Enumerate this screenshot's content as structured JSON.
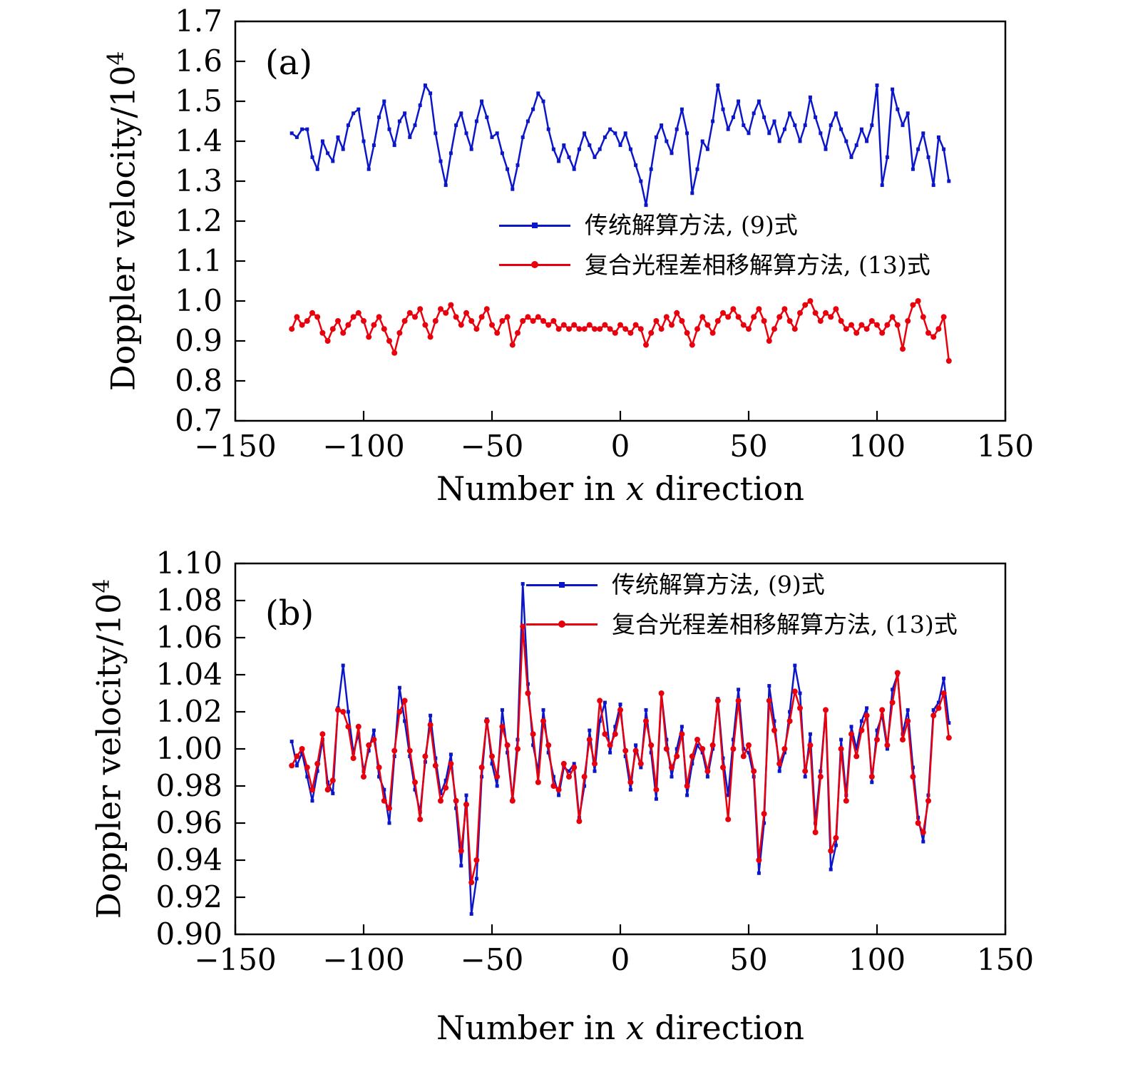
{
  "colors": {
    "series_blue": "#0b16c8",
    "series_red": "#e8000d",
    "axis": "#000000"
  },
  "chart_data": [
    {
      "type": "line",
      "panel_label": "(a)",
      "title": "",
      "ylabel_base": "Doppler velocity/10",
      "ylabel_sup": "4",
      "xlabel_pre": "Number in ",
      "xlabel_var": "x",
      "xlabel_post": " direction",
      "xlim": [
        -150,
        150
      ],
      "ylim": [
        0.7,
        1.7
      ],
      "grid": false,
      "legend_position": "center-right-inside",
      "xticks": {
        "values": [
          -150,
          -100,
          -50,
          0,
          50,
          100,
          150
        ],
        "labels": [
          "−150",
          "−100",
          "−50",
          "0",
          "50",
          "100",
          "150"
        ]
      },
      "yticks": {
        "values": [
          0.7,
          0.8,
          0.9,
          1.0,
          1.1,
          1.2,
          1.3,
          1.4,
          1.5,
          1.6,
          1.7
        ],
        "labels": [
          "0.7",
          "0.8",
          "0.9",
          "1.0",
          "1.1",
          "1.2",
          "1.3",
          "1.4",
          "1.5",
          "1.6",
          "1.7"
        ]
      },
      "x": [
        -128,
        -126,
        -124,
        -122,
        -120,
        -118,
        -116,
        -114,
        -112,
        -110,
        -108,
        -106,
        -104,
        -102,
        -100,
        -98,
        -96,
        -94,
        -92,
        -90,
        -88,
        -86,
        -84,
        -82,
        -80,
        -78,
        -76,
        -74,
        -72,
        -70,
        -68,
        -66,
        -64,
        -62,
        -60,
        -58,
        -56,
        -54,
        -52,
        -50,
        -48,
        -46,
        -44,
        -42,
        -40,
        -38,
        -36,
        -34,
        -32,
        -30,
        -28,
        -26,
        -24,
        -22,
        -20,
        -18,
        -16,
        -14,
        -12,
        -10,
        -8,
        -6,
        -4,
        -2,
        0,
        2,
        4,
        6,
        8,
        10,
        12,
        14,
        16,
        18,
        20,
        22,
        24,
        26,
        28,
        30,
        32,
        34,
        36,
        38,
        40,
        42,
        44,
        46,
        48,
        50,
        52,
        54,
        56,
        58,
        60,
        62,
        64,
        66,
        68,
        70,
        72,
        74,
        76,
        78,
        80,
        82,
        84,
        86,
        88,
        90,
        92,
        94,
        96,
        98,
        100,
        102,
        104,
        106,
        108,
        110,
        112,
        114,
        116,
        118,
        120,
        122,
        124,
        126,
        128
      ],
      "series": [
        {
          "name": "传统解算方法, (9)式",
          "color": "#0b16c8",
          "marker": "square",
          "values": [
            1.42,
            1.41,
            1.43,
            1.43,
            1.36,
            1.33,
            1.4,
            1.37,
            1.35,
            1.41,
            1.38,
            1.44,
            1.47,
            1.48,
            1.4,
            1.33,
            1.39,
            1.46,
            1.5,
            1.43,
            1.39,
            1.45,
            1.47,
            1.41,
            1.44,
            1.49,
            1.54,
            1.52,
            1.42,
            1.35,
            1.29,
            1.37,
            1.44,
            1.47,
            1.42,
            1.38,
            1.45,
            1.5,
            1.46,
            1.41,
            1.42,
            1.37,
            1.33,
            1.28,
            1.34,
            1.41,
            1.45,
            1.48,
            1.52,
            1.5,
            1.43,
            1.38,
            1.35,
            1.39,
            1.36,
            1.33,
            1.38,
            1.42,
            1.39,
            1.36,
            1.38,
            1.41,
            1.43,
            1.42,
            1.39,
            1.42,
            1.38,
            1.34,
            1.3,
            1.24,
            1.33,
            1.41,
            1.44,
            1.4,
            1.37,
            1.43,
            1.48,
            1.42,
            1.27,
            1.33,
            1.4,
            1.38,
            1.45,
            1.54,
            1.48,
            1.43,
            1.46,
            1.5,
            1.44,
            1.42,
            1.47,
            1.5,
            1.46,
            1.42,
            1.45,
            1.4,
            1.43,
            1.47,
            1.44,
            1.4,
            1.44,
            1.51,
            1.46,
            1.42,
            1.38,
            1.44,
            1.47,
            1.43,
            1.4,
            1.36,
            1.39,
            1.43,
            1.4,
            1.44,
            1.54,
            1.29,
            1.36,
            1.53,
            1.48,
            1.44,
            1.47,
            1.33,
            1.38,
            1.42,
            1.36,
            1.29,
            1.41,
            1.38,
            1.3
          ]
        },
        {
          "name": "复合光程差相移解算方法, (13)式",
          "color": "#e8000d",
          "marker": "circle",
          "values": [
            0.93,
            0.96,
            0.94,
            0.95,
            0.97,
            0.96,
            0.92,
            0.9,
            0.93,
            0.95,
            0.92,
            0.94,
            0.96,
            0.97,
            0.95,
            0.91,
            0.94,
            0.96,
            0.93,
            0.9,
            0.87,
            0.92,
            0.95,
            0.97,
            0.96,
            0.98,
            0.94,
            0.91,
            0.95,
            0.98,
            0.97,
            0.99,
            0.96,
            0.94,
            0.97,
            0.95,
            0.93,
            0.96,
            0.98,
            0.94,
            0.92,
            0.95,
            0.96,
            0.89,
            0.92,
            0.95,
            0.96,
            0.95,
            0.96,
            0.95,
            0.94,
            0.95,
            0.93,
            0.94,
            0.93,
            0.94,
            0.93,
            0.93,
            0.94,
            0.93,
            0.93,
            0.94,
            0.93,
            0.92,
            0.94,
            0.93,
            0.92,
            0.94,
            0.93,
            0.89,
            0.92,
            0.95,
            0.93,
            0.96,
            0.94,
            0.97,
            0.95,
            0.92,
            0.89,
            0.93,
            0.96,
            0.94,
            0.92,
            0.95,
            0.97,
            0.96,
            0.98,
            0.96,
            0.94,
            0.93,
            0.96,
            0.98,
            0.95,
            0.9,
            0.93,
            0.96,
            0.98,
            0.95,
            0.93,
            0.97,
            0.99,
            1.0,
            0.97,
            0.95,
            0.97,
            0.96,
            0.98,
            0.95,
            0.93,
            0.94,
            0.92,
            0.94,
            0.93,
            0.95,
            0.94,
            0.92,
            0.94,
            0.96,
            0.94,
            0.88,
            0.95,
            0.99,
            1.0,
            0.96,
            0.92,
            0.91,
            0.93,
            0.96,
            0.85
          ]
        }
      ]
    },
    {
      "type": "line",
      "panel_label": "(b)",
      "title": "",
      "ylabel_base": "Doppler velocity/10",
      "ylabel_sup": "4",
      "xlabel_pre": "Number in ",
      "xlabel_var": "x",
      "xlabel_post": " direction",
      "xlim": [
        -150,
        150
      ],
      "ylim": [
        0.9,
        1.1
      ],
      "grid": false,
      "legend_position": "top-right-inside",
      "xticks": {
        "values": [
          -150,
          -100,
          -50,
          0,
          50,
          100,
          150
        ],
        "labels": [
          "−150",
          "−100",
          "−50",
          "0",
          "50",
          "100",
          "150"
        ]
      },
      "yticks": {
        "values": [
          0.9,
          0.92,
          0.94,
          0.96,
          0.98,
          1.0,
          1.02,
          1.04,
          1.06,
          1.08,
          1.1
        ],
        "labels": [
          "0.90",
          "0.92",
          "0.94",
          "0.96",
          "0.98",
          "1.00",
          "1.02",
          "1.04",
          "1.06",
          "1.08",
          "1.10"
        ]
      },
      "x": [
        -128,
        -126,
        -124,
        -122,
        -120,
        -118,
        -116,
        -114,
        -112,
        -110,
        -108,
        -106,
        -104,
        -102,
        -100,
        -98,
        -96,
        -94,
        -92,
        -90,
        -88,
        -86,
        -84,
        -82,
        -80,
        -78,
        -76,
        -74,
        -72,
        -70,
        -68,
        -66,
        -64,
        -62,
        -60,
        -58,
        -56,
        -54,
        -52,
        -50,
        -48,
        -46,
        -44,
        -42,
        -40,
        -38,
        -36,
        -34,
        -32,
        -30,
        -28,
        -26,
        -24,
        -22,
        -20,
        -18,
        -16,
        -14,
        -12,
        -10,
        -8,
        -6,
        -4,
        -2,
        0,
        2,
        4,
        6,
        8,
        10,
        12,
        14,
        16,
        18,
        20,
        22,
        24,
        26,
        28,
        30,
        32,
        34,
        36,
        38,
        40,
        42,
        44,
        46,
        48,
        50,
        52,
        54,
        56,
        58,
        60,
        62,
        64,
        66,
        68,
        70,
        72,
        74,
        76,
        78,
        80,
        82,
        84,
        86,
        88,
        90,
        92,
        94,
        96,
        98,
        100,
        102,
        104,
        106,
        108,
        110,
        112,
        114,
        116,
        118,
        120,
        122,
        124,
        126,
        128
      ],
      "series": [
        {
          "name": "传统解算方法, (9)式",
          "color": "#0b16c8",
          "marker": "square",
          "values": [
            1.004,
            0.991,
            0.998,
            0.985,
            0.972,
            0.988,
            1.005,
            0.982,
            0.976,
            1.022,
            1.045,
            1.02,
            0.998,
            1.008,
            0.988,
            0.999,
            1.01,
            0.985,
            0.978,
            0.96,
            0.996,
            1.033,
            1.015,
            0.996,
            0.978,
            0.966,
            0.993,
            1.018,
            0.995,
            0.976,
            0.983,
            0.997,
            0.968,
            0.937,
            0.975,
            0.911,
            0.93,
            0.985,
            1.016,
            0.992,
            0.98,
            1.021,
            0.998,
            0.973,
            1.005,
            1.089,
            1.035,
            1.002,
            0.988,
            1.021,
            0.998,
            0.985,
            0.975,
            0.99,
            0.988,
            0.992,
            0.963,
            0.98,
            1.01,
            0.988,
            1.015,
            1.025,
            0.998,
            1.012,
            1.024,
            0.996,
            0.978,
            1.002,
            0.99,
            1.021,
            0.998,
            0.973,
            1.03,
            1.005,
            0.985,
            1.0,
            1.012,
            0.975,
            0.992,
            1.002,
            0.998,
            0.985,
            1.0,
            1.027,
            0.995,
            0.975,
            1.005,
            1.032,
            1.0,
            0.998,
            0.985,
            0.933,
            0.96,
            1.034,
            1.015,
            0.988,
            0.998,
            1.02,
            1.045,
            1.03,
            0.985,
            1.008,
            0.96,
            0.988,
            1.021,
            0.935,
            0.948,
            1.005,
            0.975,
            1.012,
            1.0,
            1.015,
            1.022,
            0.982,
            1.01,
            1.018,
            1.0,
            1.032,
            1.04,
            1.008,
            1.021,
            0.99,
            0.963,
            0.95,
            0.975,
            1.021,
            1.025,
            1.038,
            1.014
          ]
        },
        {
          "name": "复合光程差相移解算方法, (13)式",
          "color": "#e8000d",
          "marker": "circle",
          "values": [
            0.991,
            0.996,
            1.0,
            0.99,
            0.978,
            0.992,
            1.008,
            0.978,
            0.983,
            1.021,
            1.02,
            1.012,
            0.995,
            1.012,
            0.985,
            1.002,
            1.005,
            0.99,
            0.972,
            0.968,
            0.999,
            1.02,
            1.026,
            0.999,
            0.982,
            0.962,
            0.996,
            1.013,
            0.991,
            0.972,
            0.979,
            0.992,
            0.972,
            0.945,
            0.97,
            0.928,
            0.94,
            0.99,
            1.015,
            0.996,
            0.985,
            1.012,
            1.002,
            0.972,
            1.0,
            1.066,
            1.03,
            1.008,
            0.982,
            1.015,
            1.002,
            0.98,
            0.978,
            0.992,
            0.985,
            0.99,
            0.961,
            0.985,
            1.005,
            0.992,
            1.026,
            1.008,
            1.002,
            1.008,
            1.021,
            0.999,
            0.982,
            0.999,
            0.992,
            1.015,
            1.002,
            0.978,
            1.03,
            1.0,
            0.99,
            0.996,
            1.008,
            0.98,
            0.996,
            1.005,
            1.0,
            0.988,
            1.002,
            1.026,
            0.99,
            0.962,
            1.0,
            1.026,
            0.996,
            1.002,
            0.988,
            0.94,
            0.965,
            1.026,
            1.01,
            0.992,
            1.0,
            1.015,
            1.031,
            1.022,
            0.988,
            1.002,
            0.955,
            0.985,
            1.021,
            0.945,
            0.952,
            1.0,
            0.972,
            1.008,
            0.996,
            1.01,
            1.018,
            0.985,
            1.005,
            1.021,
            1.002,
            1.025,
            1.041,
            1.005,
            1.015,
            0.985,
            0.96,
            0.955,
            0.972,
            1.018,
            1.022,
            1.03,
            1.006
          ]
        }
      ]
    }
  ]
}
